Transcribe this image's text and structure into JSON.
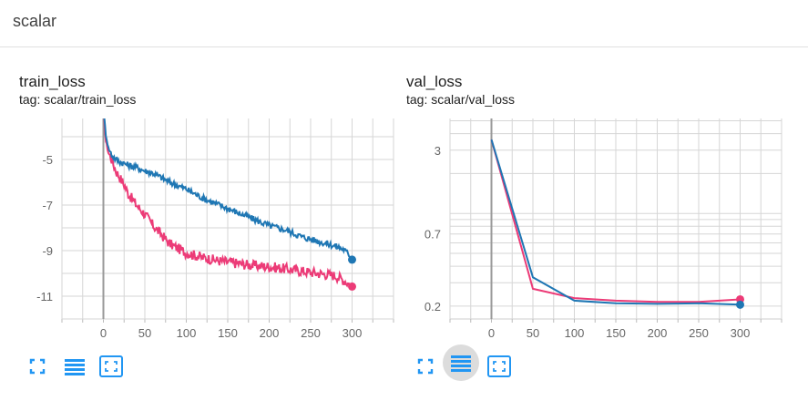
{
  "header": {
    "title": "scalar"
  },
  "colors": {
    "series_a": "#ec3b77",
    "series_b": "#1f77b4",
    "accent_icon": "#2196f3"
  },
  "cards": [
    {
      "title": "train_loss",
      "tag": "tag: scalar/train_loss",
      "toolbar": [
        "fullscreen-icon",
        "list-icon",
        "fit-screen-icon"
      ]
    },
    {
      "title": "val_loss",
      "tag": "tag: scalar/val_loss",
      "toolbar": [
        "fullscreen-icon",
        "list-icon",
        "fit-screen-icon"
      ]
    }
  ],
  "chart_data": [
    {
      "type": "line",
      "title": "train_loss",
      "xlabel": "",
      "ylabel": "",
      "xlim": [
        -50,
        350
      ],
      "ylim": [
        -12.0,
        -3.2
      ],
      "x_ticks": [
        0,
        50,
        100,
        150,
        200,
        250,
        300
      ],
      "y_ticks": [
        -5,
        -7,
        -9,
        -11
      ],
      "grid": true,
      "series": [
        {
          "color": "#ec3b77",
          "x": [
            0,
            3,
            6,
            10,
            15,
            20,
            25,
            30,
            40,
            50,
            60,
            70,
            80,
            90,
            100,
            120,
            140,
            160,
            180,
            200,
            220,
            240,
            260,
            280,
            290,
            300
          ],
          "values": [
            -2.8,
            -4.2,
            -4.7,
            -5.0,
            -5.5,
            -5.8,
            -6.1,
            -6.5,
            -7.0,
            -7.4,
            -7.9,
            -8.3,
            -8.7,
            -8.9,
            -9.1,
            -9.3,
            -9.45,
            -9.55,
            -9.65,
            -9.7,
            -9.8,
            -9.9,
            -10.0,
            -10.1,
            -10.3,
            -10.55
          ]
        },
        {
          "color": "#1f77b4",
          "x": [
            0,
            3,
            6,
            10,
            15,
            20,
            30,
            40,
            50,
            60,
            70,
            80,
            100,
            120,
            140,
            160,
            180,
            200,
            220,
            240,
            260,
            280,
            290,
            300
          ],
          "values": [
            -2.8,
            -3.9,
            -4.5,
            -4.8,
            -5.0,
            -5.1,
            -5.25,
            -5.35,
            -5.5,
            -5.6,
            -5.8,
            -6.0,
            -6.3,
            -6.7,
            -7.0,
            -7.3,
            -7.6,
            -7.9,
            -8.1,
            -8.4,
            -8.6,
            -8.8,
            -8.95,
            -9.3
          ]
        }
      ]
    },
    {
      "type": "line",
      "title": "val_loss",
      "xlabel": "",
      "ylabel": "",
      "xlim": [
        -50,
        350
      ],
      "y_scale": "log",
      "y_ticks": [
        3,
        0.7,
        0.2
      ],
      "x_ticks": [
        0,
        50,
        100,
        150,
        200,
        250,
        300
      ],
      "grid": true,
      "series": [
        {
          "color": "#ec3b77",
          "x": [
            0,
            50,
            100,
            150,
            200,
            250,
            300
          ],
          "values": [
            3.6,
            0.27,
            0.23,
            0.22,
            0.215,
            0.215,
            0.225
          ]
        },
        {
          "color": "#1f77b4",
          "x": [
            0,
            50,
            100,
            150,
            200,
            250,
            300
          ],
          "values": [
            3.6,
            0.33,
            0.22,
            0.21,
            0.208,
            0.21,
            0.205
          ]
        }
      ]
    }
  ]
}
